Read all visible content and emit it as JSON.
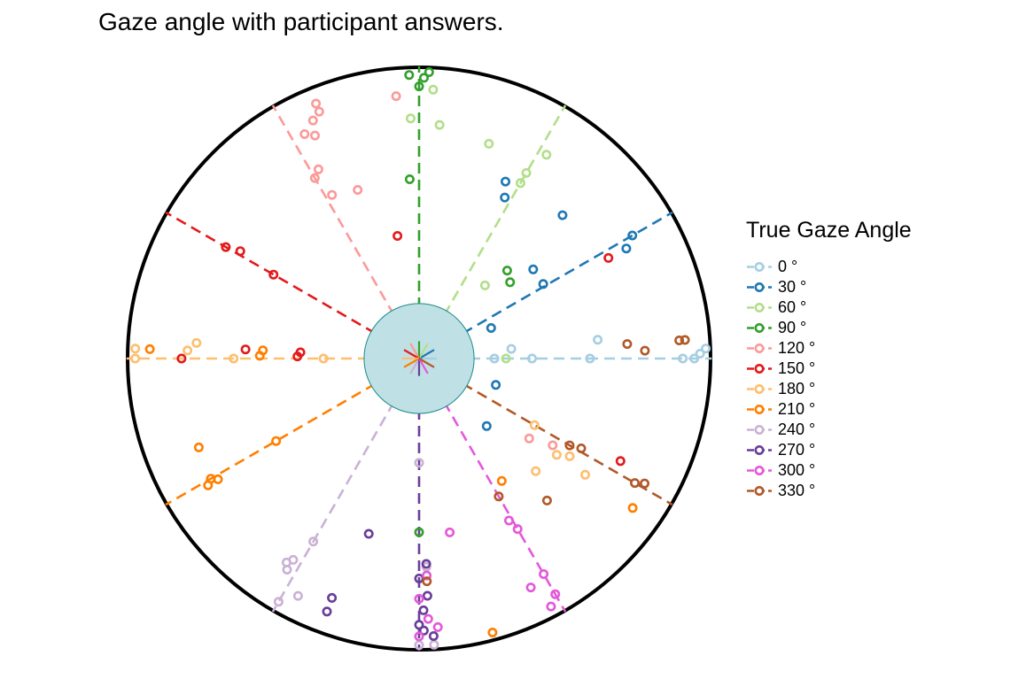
{
  "chart_data": {
    "type": "scatter",
    "coordinate_system": "polar",
    "title": "Gaze angle with participant answers.",
    "legend": {
      "title": "True Gaze Angle",
      "position": "right"
    },
    "unit": "°",
    "radial_range": [
      0,
      1
    ],
    "center_disc_radius": 0.19,
    "series": [
      {
        "name": "0",
        "true_angle": 0,
        "color": "#a6cee3",
        "points": [
          [
            0,
            0.26
          ],
          [
            6,
            0.32
          ],
          [
            0,
            0.39
          ],
          [
            0,
            0.59
          ],
          [
            6,
            0.62
          ],
          [
            0,
            0.91
          ],
          [
            0,
            0.95
          ],
          [
            1,
            0.97
          ],
          [
            2,
            0.99
          ]
        ]
      },
      {
        "name": "30",
        "true_angle": 30,
        "color": "#1f78b4",
        "points": [
          [
            23,
            0.27
          ],
          [
            38,
            0.5
          ],
          [
            31,
            0.5
          ],
          [
            28,
            0.81
          ],
          [
            30,
            0.85
          ],
          [
            -19,
            0.28
          ],
          [
            -45,
            0.33
          ],
          [
            64,
            0.68
          ],
          [
            62,
            0.63
          ],
          [
            45,
            0.7
          ]
        ]
      },
      {
        "name": "60",
        "true_angle": 60,
        "color": "#b2df8a",
        "points": [
          [
            0,
            0.3
          ],
          [
            48,
            0.34
          ],
          [
            60,
            0.7
          ],
          [
            60,
            0.74
          ],
          [
            58,
            0.83
          ],
          [
            92,
            0.83
          ],
          [
            85,
            0.81
          ],
          [
            87,
            0.93
          ],
          [
            72,
            0.78
          ]
        ]
      },
      {
        "name": "90",
        "true_angle": 90,
        "color": "#33a02c",
        "points": [
          [
            90,
            0.94
          ],
          [
            89,
            0.97
          ],
          [
            88,
            0.99
          ],
          [
            92,
            0.98
          ],
          [
            93,
            0.62
          ],
          [
            40,
            0.41
          ],
          [
            45,
            0.43
          ],
          [
            -90,
            0.6
          ]
        ]
      },
      {
        "name": "120",
        "true_angle": 120,
        "color": "#fb9a99",
        "points": [
          [
            120,
            0.72
          ],
          [
            118,
            0.74
          ],
          [
            115,
            0.85
          ],
          [
            117,
            0.87
          ],
          [
            114,
            0.9
          ],
          [
            112,
            0.92
          ],
          [
            112,
            0.95
          ],
          [
            118,
            0.64
          ],
          [
            110,
            0.62
          ],
          [
            95,
            0.91
          ],
          [
            -33,
            0.55
          ],
          [
            -36,
            0.47
          ]
        ]
      },
      {
        "name": "150",
        "true_angle": 150,
        "color": "#e31a1c",
        "points": [
          [
            150,
            0.58
          ],
          [
            150,
            0.77
          ],
          [
            149,
            0.72
          ],
          [
            177,
            0.6
          ],
          [
            177,
            0.41
          ],
          [
            179,
            0.42
          ],
          [
            180,
            0.82
          ],
          [
            -27,
            0.78
          ],
          [
            100,
            0.43
          ],
          [
            28,
            0.74
          ]
        ]
      },
      {
        "name": "180",
        "true_angle": 180,
        "color": "#fdbf6f",
        "points": [
          [
            180,
            0.33
          ],
          [
            180,
            0.64
          ],
          [
            178,
            0.8
          ],
          [
            176,
            0.77
          ],
          [
            178,
            0.98
          ],
          [
            180,
            0.98
          ],
          [
            -33,
            0.62
          ],
          [
            -35,
            0.58
          ],
          [
            -35,
            0.7
          ],
          [
            -30,
            0.46
          ],
          [
            -44,
            0.56
          ]
        ]
      },
      {
        "name": "210",
        "true_angle": 210,
        "color": "#ff7f00",
        "points": [
          [
            210,
            0.57
          ],
          [
            211,
            0.81
          ],
          [
            210,
            0.83
          ],
          [
            211,
            0.85
          ],
          [
            202,
            0.82
          ],
          [
            179,
            0.55
          ],
          [
            177,
            0.54
          ],
          [
            -35,
            0.9
          ],
          [
            -56,
            0.51
          ],
          [
            -75,
            0.98
          ],
          [
            178,
            0.93
          ]
        ]
      },
      {
        "name": "240",
        "true_angle": 240,
        "color": "#cab2d6",
        "points": [
          [
            240,
            0.73
          ],
          [
            238,
            0.82
          ],
          [
            237,
            0.84
          ],
          [
            238,
            0.86
          ],
          [
            -90,
            0.36
          ],
          [
            -88,
            0.72
          ],
          [
            -87,
            0.99
          ],
          [
            -90,
            0.99
          ],
          [
            -117,
            0.92
          ],
          [
            -120,
            0.97
          ]
        ]
      },
      {
        "name": "270",
        "true_angle": 270,
        "color": "#6a3d9a",
        "points": [
          [
            272,
            0.71
          ],
          [
            270,
            0.76
          ],
          [
            272,
            0.82
          ],
          [
            271,
            0.87
          ],
          [
            270,
            0.92
          ],
          [
            271,
            0.94
          ],
          [
            -87,
            0.96
          ],
          [
            -110,
            0.88
          ],
          [
            -106,
            0.63
          ],
          [
            -110,
            0.93
          ]
        ]
      },
      {
        "name": "300",
        "true_angle": 300,
        "color": "#e458da",
        "points": [
          [
            300,
            0.68
          ],
          [
            299,
            0.64
          ],
          [
            300,
            0.86
          ],
          [
            296,
            0.88
          ],
          [
            -88,
            0.75
          ],
          [
            -90,
            0.83
          ],
          [
            -88,
            0.9
          ],
          [
            -86,
            0.93
          ],
          [
            -90,
            0.96
          ],
          [
            -80,
            0.61
          ],
          [
            -60,
            0.94
          ],
          [
            -62,
            0.97
          ]
        ]
      },
      {
        "name": "330",
        "true_angle": 330,
        "color": "#b15928",
        "points": [
          [
            330,
            0.6
          ],
          [
            331,
            0.64
          ],
          [
            330,
            0.86
          ],
          [
            331,
            0.89
          ],
          [
            312,
            0.66
          ],
          [
            -88,
            0.77
          ],
          [
            4,
            0.72
          ],
          [
            4,
            0.9
          ],
          [
            4,
            0.92
          ],
          [
            2,
            0.78
          ],
          [
            -60,
            0.55
          ]
        ]
      }
    ]
  }
}
